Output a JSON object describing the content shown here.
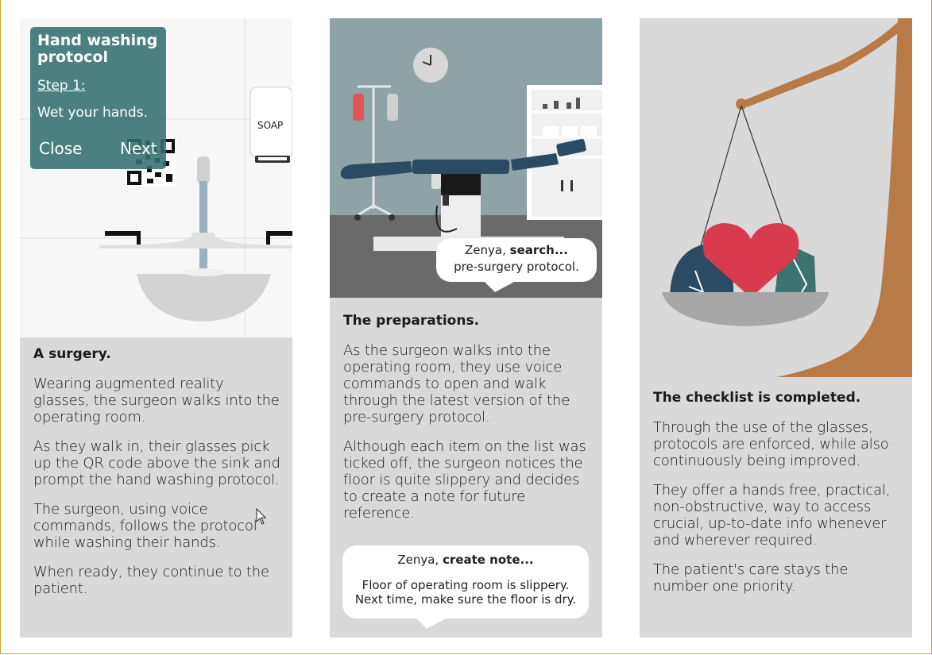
{
  "panel1": {
    "overlay": {
      "title": "Hand washing protocol",
      "step": "Step 1:",
      "instruction": "Wet your hands.",
      "close_label": "Close",
      "next_label": "Next"
    },
    "soap_label": "SOAP",
    "heading": "A surgery.",
    "paragraphs": [
      "Wearing augmented reality glasses, the surgeon walks into the operating room.",
      "As they walk in, their glasses pick up the QR code above the sink and prompt the hand washing protocol.",
      "The surgeon, using voice commands, follows the protocol while washing their hands.",
      "When ready, they continue to the patient."
    ]
  },
  "panel2": {
    "bubble1": {
      "name": "Zenya,",
      "command": "search...",
      "line2": "pre-surgery protocol."
    },
    "heading": "The preparations.",
    "paragraphs": [
      "As the surgeon walks into the operating room, they use voice commands to open and walk through the latest version of the pre-surgery protocol.",
      "Although each item on the list was ticked off, the surgeon notices the floor is quite slippery and decides to create a note for future reference."
    ],
    "bubble2": {
      "name": "Zenya,",
      "command": "create note...",
      "line2": "Floor of operating room is slippery.",
      "line3": "Next time, make sure the floor is dry."
    }
  },
  "panel3": {
    "heading": "The checklist is completed.",
    "paragraphs": [
      "Through the use of the glasses, protocols are enforced, while also continuously being improved.",
      "They offer a hands free, practical, non-obstructive, way to access crucial, up-to-date info whenever and wherever required.",
      "The patient's care stays the number one priority."
    ]
  },
  "colors": {
    "panel_bg": "#d9d9d9",
    "teal": "#347070",
    "navy": "#2b4a63",
    "heart": "#d83a4e",
    "wood": "#b87a47"
  }
}
